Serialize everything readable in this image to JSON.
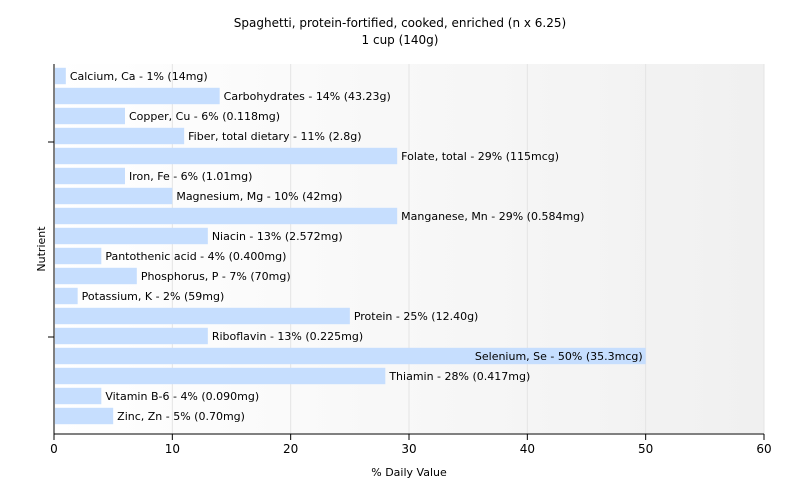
{
  "chart_data": {
    "type": "bar",
    "orientation": "horizontal",
    "title": "Spaghetti, protein-fortified, cooked, enriched (n x 6.25)",
    "subtitle": "1 cup (140g)",
    "xlabel": "% Daily Value",
    "ylabel": "Nutrient",
    "xlim": [
      0,
      60
    ],
    "xticks": [
      0,
      10,
      20,
      30,
      40,
      50,
      60
    ],
    "grid": true,
    "bar_color": "#c6defe",
    "categories": [
      "Calcium, Ca",
      "Carbohydrates",
      "Copper, Cu",
      "Fiber, total dietary",
      "Folate, total",
      "Iron, Fe",
      "Magnesium, Mg",
      "Manganese, Mn",
      "Niacin",
      "Pantothenic acid",
      "Phosphorus, P",
      "Potassium, K",
      "Protein",
      "Riboflavin",
      "Selenium, Se",
      "Thiamin",
      "Vitamin B-6",
      "Zinc, Zn"
    ],
    "values": [
      1,
      14,
      6,
      11,
      29,
      6,
      10,
      29,
      13,
      4,
      7,
      2,
      25,
      13,
      50,
      28,
      4,
      5
    ],
    "labels": [
      "Calcium, Ca - 1% (14mg)",
      "Carbohydrates - 14% (43.23g)",
      "Copper, Cu - 6% (0.118mg)",
      "Fiber, total dietary - 11% (2.8g)",
      "Folate, total - 29% (115mcg)",
      "Iron, Fe - 6% (1.01mg)",
      "Magnesium, Mg - 10% (42mg)",
      "Manganese, Mn - 29% (0.584mg)",
      "Niacin - 13% (2.572mg)",
      "Pantothenic acid - 4% (0.400mg)",
      "Phosphorus, P - 7% (70mg)",
      "Potassium, K - 2% (59mg)",
      "Protein - 25% (12.40g)",
      "Riboflavin - 13% (0.225mg)",
      "Selenium, Se - 50% (35.3mcg)",
      "Thiamin - 28% (0.417mg)",
      "Vitamin B-6 - 4% (0.090mg)",
      "Zinc, Zn - 5% (0.70mg)"
    ]
  }
}
